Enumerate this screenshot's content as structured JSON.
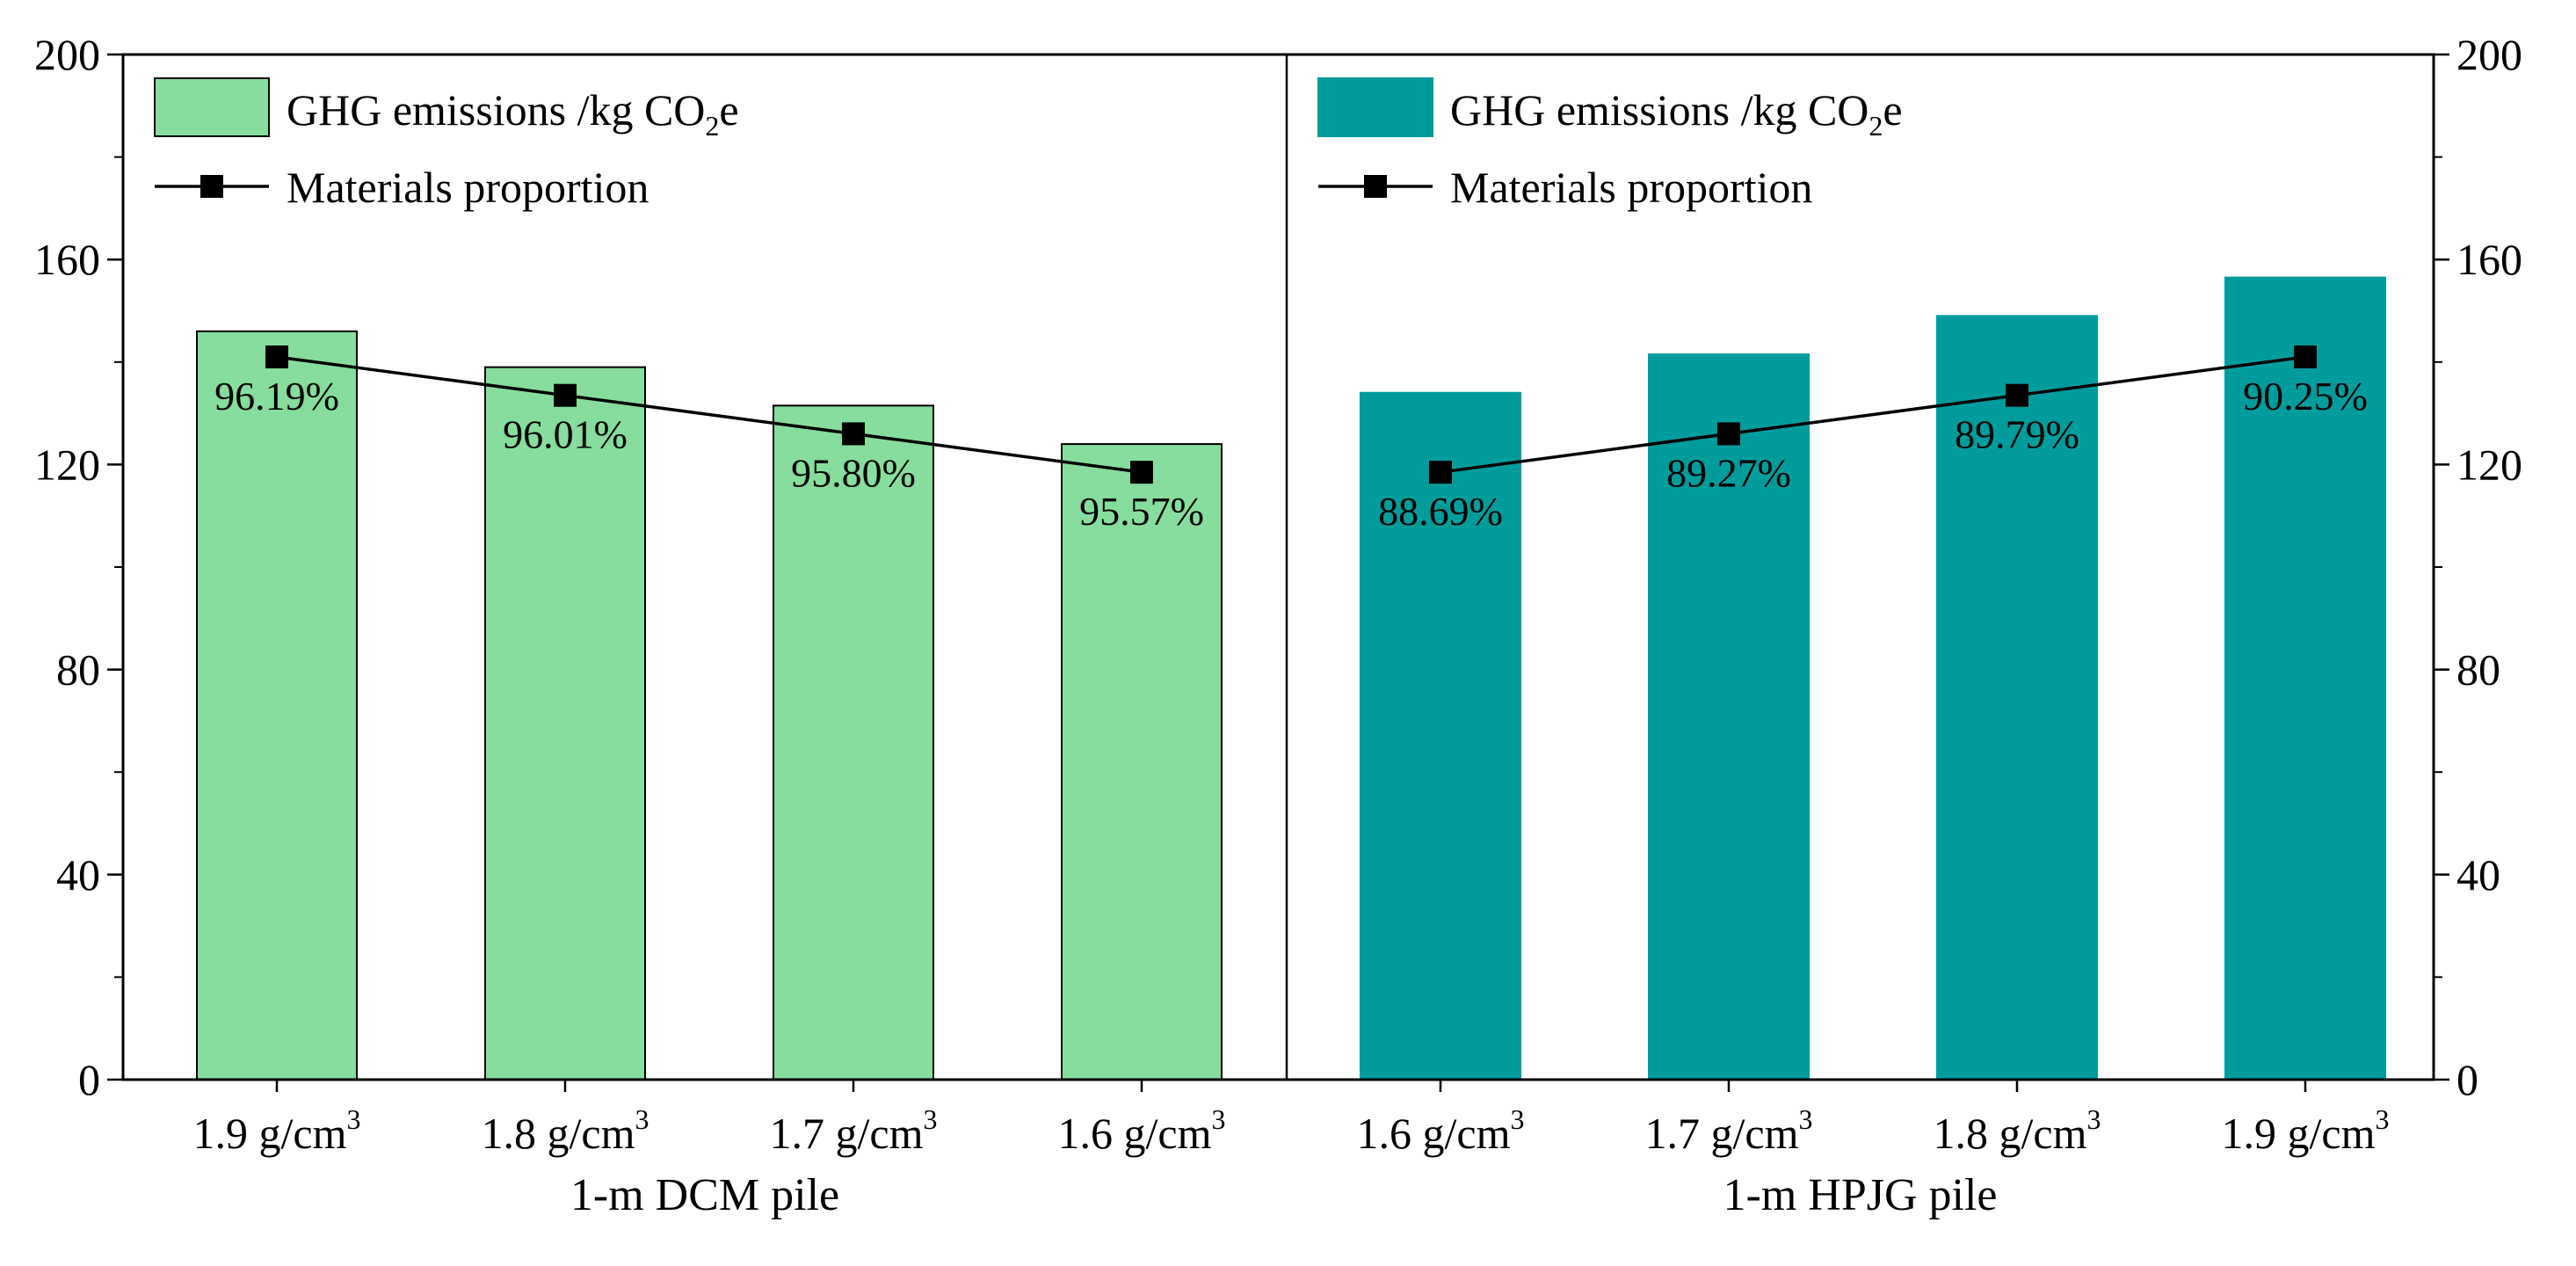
{
  "chart_data": {
    "type": "bar",
    "y_axis": {
      "ylim": [
        0,
        200
      ],
      "ticks": [
        "0",
        "40",
        "80",
        "120",
        "160",
        "200"
      ]
    },
    "panels": [
      {
        "name": "dcm",
        "xlabel": "1-m DCM pile",
        "categories": [
          "1.9 g/cm",
          "1.8 g/cm",
          "1.7 g/cm",
          "1.6 g/cm"
        ],
        "unit_superscript": "3",
        "bar_color": "#86dd9d",
        "bar_edge": "#000000",
        "series": [
          {
            "name": "GHG emissions /kg CO2e",
            "kind": "bar",
            "values": [
              146,
              139,
              131.5,
              124
            ]
          },
          {
            "name": "Materials proportion",
            "kind": "line",
            "marker_y": [
              141,
              133.5,
              126,
              118.5
            ],
            "labels": [
              "96.19%",
              "96.01%",
              "95.80%",
              "95.57%"
            ]
          }
        ],
        "legend": {
          "bar_text": "GHG emissions /kg CO",
          "bar_sub": "2",
          "bar_tail": "e",
          "line_text": "Materials proportion"
        }
      },
      {
        "name": "hpjg",
        "xlabel": "1-m HPJG pile",
        "categories": [
          "1.6 g/cm",
          "1.7 g/cm",
          "1.8 g/cm",
          "1.9 g/cm"
        ],
        "unit_superscript": "3",
        "bar_color": "#009c9c",
        "bar_edge": "#009c9c",
        "series": [
          {
            "name": "GHG emissions /kg CO2e",
            "kind": "bar",
            "values": [
              134,
              141.5,
              149,
              156.5
            ]
          },
          {
            "name": "Materials proportion",
            "kind": "line",
            "marker_y": [
              118.5,
              126,
              133.5,
              141
            ],
            "labels": [
              "88.69%",
              "89.27%",
              "89.79%",
              "90.25%"
            ]
          }
        ],
        "legend": {
          "bar_text": "GHG emissions /kg CO",
          "bar_sub": "2",
          "bar_tail": "e",
          "line_text": "Materials proportion"
        }
      }
    ]
  }
}
